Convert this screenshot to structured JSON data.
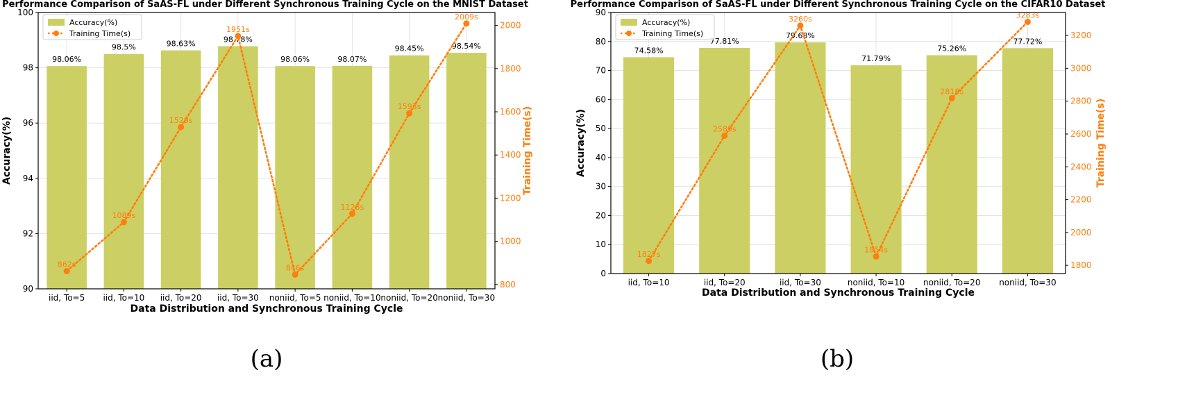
{
  "figure": {
    "panel_a_letter": "(a)",
    "panel_b_letter": "(b)"
  },
  "colors": {
    "bar": "#cccf63",
    "line": "#ff7f0e",
    "grid": "#e3e3e3",
    "axis": "#000000"
  },
  "chart_data": [
    {
      "type": "bar",
      "title": "Performance Comparison of SaAS-FL under Different Synchronous Training Cycle on the MNIST Dataset",
      "xlabel": "Data Distribution and Synchronous Training Cycle",
      "ylabel": "Accuracy(%)",
      "y2label": "Training Time(s)",
      "categories": [
        "iid, To=5",
        "iid, To=10",
        "iid, To=20",
        "iid, To=30",
        "noniid, To=5",
        "noniid, To=10",
        "noniid, To=20",
        "noniid, To=30"
      ],
      "series": [
        {
          "name": "Accuracy(%)",
          "type": "bar",
          "axis": "left",
          "values": [
            98.06,
            98.5,
            98.63,
            98.78,
            98.06,
            98.07,
            98.45,
            98.54
          ],
          "labels": [
            "98.06%",
            "98.5%",
            "98.63%",
            "98.78%",
            "98.06%",
            "98.07%",
            "98.45%",
            "98.54%"
          ]
        },
        {
          "name": "Training Time(s)",
          "type": "line",
          "axis": "right",
          "values": [
            862,
            1089,
            1529,
            1951,
            846,
            1128,
            1593,
            2009
          ],
          "labels": [
            "862s",
            "1089s",
            "1529s",
            "1951s",
            "846s",
            "1128s",
            "1593s",
            "2009s"
          ]
        }
      ],
      "ylim": [
        90,
        100
      ],
      "yticks": [
        90,
        92,
        94,
        96,
        98,
        100
      ],
      "y2lim": [
        780,
        2060
      ],
      "y2ticks": [
        800,
        1000,
        1200,
        1400,
        1600,
        1800,
        2000
      ],
      "legend": "top-left",
      "grid": true
    },
    {
      "type": "bar",
      "title": "Performance Comparison of SaAS-FL under Different Synchronous Training Cycle on the CIFAR10 Dataset",
      "xlabel": "Data Distribution and Synchronous Training Cycle",
      "ylabel": "Accuracy(%)",
      "y2label": "Training Time(s)",
      "categories": [
        "iid, To=10",
        "iid, To=20",
        "iid, To=30",
        "noniid, To=10",
        "noniid, To=20",
        "noniid, To=30"
      ],
      "series": [
        {
          "name": "Accuracy(%)",
          "type": "bar",
          "axis": "left",
          "values": [
            74.58,
            77.81,
            79.68,
            71.79,
            75.26,
            77.72
          ],
          "labels": [
            "74.58%",
            "77.81%",
            "79.68%",
            "71.79%",
            "75.26%",
            "77.72%"
          ]
        },
        {
          "name": "Training Time(s)",
          "type": "line",
          "axis": "right",
          "values": [
            1827,
            2589,
            3260,
            1854,
            2818,
            3283
          ],
          "labels": [
            "1827s",
            "2589s",
            "3260s",
            "1854s",
            "2818s",
            "3283s"
          ]
        }
      ],
      "ylim": [
        0,
        90
      ],
      "yticks": [
        0,
        10,
        20,
        30,
        40,
        50,
        60,
        70,
        80,
        90
      ],
      "y2lim": [
        1750,
        3340
      ],
      "y2ticks": [
        1800,
        2000,
        2200,
        2400,
        2600,
        2800,
        3000,
        3200
      ],
      "legend": "top-left",
      "grid": true
    }
  ]
}
